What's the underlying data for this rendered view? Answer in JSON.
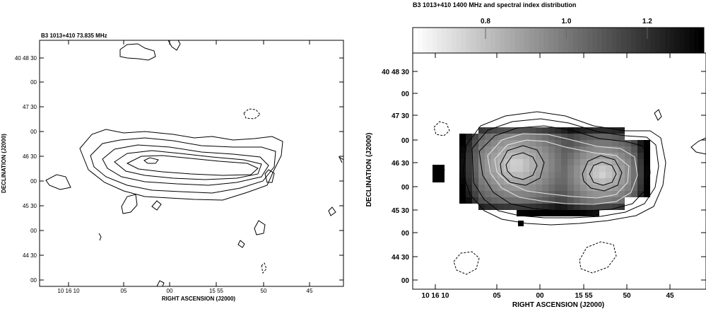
{
  "chart_data": [
    {
      "type": "contour",
      "title": "B3 1013+410  73.835 MHz",
      "xlabel": "RIGHT ASCENSION (J2000)",
      "ylabel": "DECLINATION (J2000)",
      "x_ticks": [
        "10 16 10",
        "05",
        "00",
        "15 55",
        "50",
        "45"
      ],
      "y_ticks": [
        "40 48 30",
        "00",
        "47 30",
        "00",
        "46 30",
        "00",
        "45 30",
        "00",
        "44 30",
        "00"
      ],
      "x_range_s": [
        -1.6,
        28.2
      ],
      "y_range_as": [
        -7,
        237
      ],
      "core_position": {
        "ra_s": 10.5,
        "dec_as": 77
      }
    },
    {
      "type": "contour+heatmap",
      "title": "B3 1013+410   1400 MHz and spectral index distribution",
      "colorbar": {
        "ticks": [
          "0.8",
          "1.0",
          "1.2"
        ],
        "range": [
          0.62,
          1.34
        ]
      },
      "xlabel": "RIGHT ASCENSION (J2000)",
      "ylabel": "DECLINATION (J2000)",
      "x_ticks": [
        "10 16 10",
        "05",
        "00",
        "15 55",
        "50",
        "45"
      ],
      "y_ticks": [
        "40 48 30",
        "00",
        "47 30",
        "00",
        "46 30",
        "00",
        "45 30",
        "00",
        "44 30",
        "00"
      ],
      "x_range_s": [
        -1.6,
        28.2
      ],
      "y_range_as": [
        -12,
        225
      ],
      "lobes": [
        {
          "ra_s": 11.5,
          "dec_as": 80
        },
        {
          "ra_s": 21.5,
          "dec_as": 76
        }
      ]
    }
  ]
}
